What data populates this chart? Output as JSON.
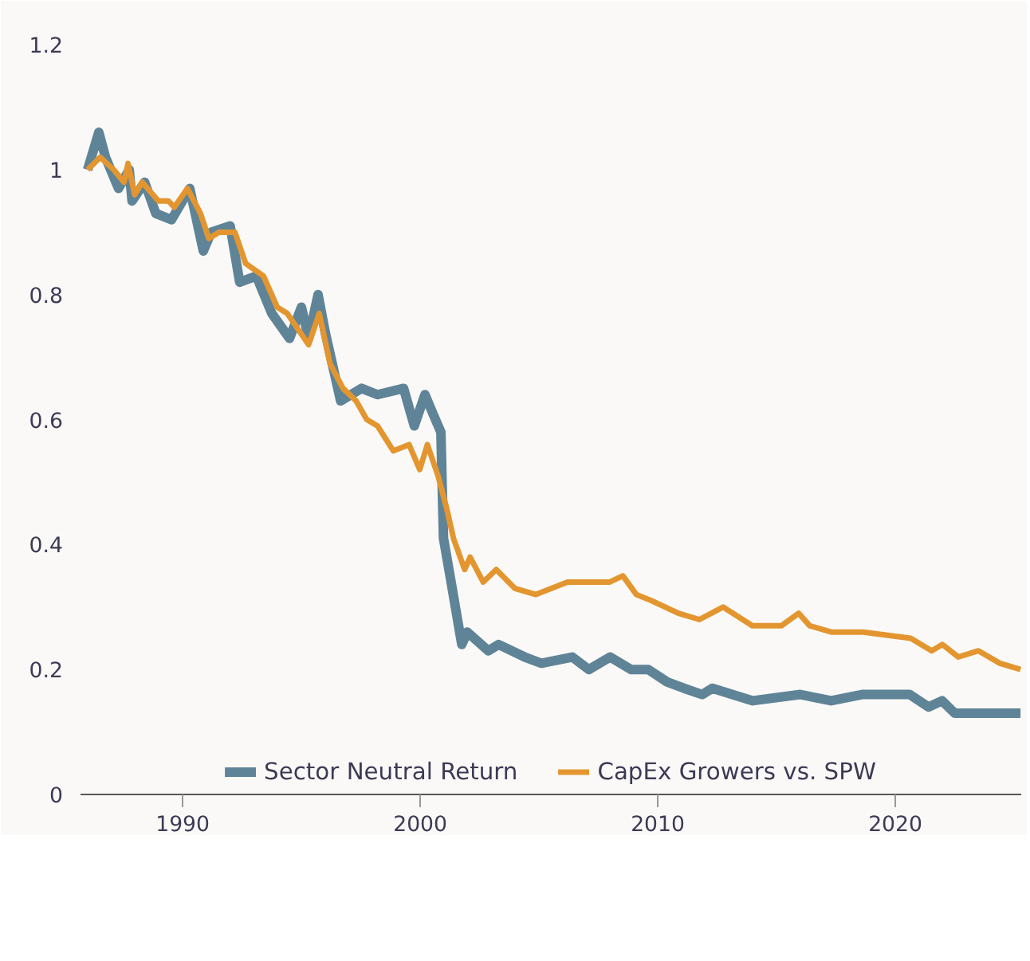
{
  "chart_data": {
    "type": "line",
    "xlim": [
      1985.7,
      2025.3
    ],
    "ylim": [
      0,
      1.25
    ],
    "xticks": [
      1990,
      2000,
      2010,
      2020
    ],
    "yticks": [
      0,
      0.2,
      0.4,
      0.6,
      0.8,
      1,
      1.2
    ],
    "grid": false,
    "legend": "bottom",
    "line_style": "solid",
    "marker": "none",
    "series": [
      {
        "name": "Sector Neutral Return",
        "color": "#5f8497",
        "x": [
          1986.0,
          1986.47,
          1986.75,
          1987.3,
          1987.75,
          1987.87,
          1988.4,
          1988.87,
          1989.53,
          1990.3,
          1990.87,
          1991.2,
          1992.0,
          1992.4,
          1993.1,
          1993.75,
          1994.5,
          1995.0,
          1995.3,
          1995.7,
          1996.0,
          1996.65,
          1997.53,
          1998.2,
          1999.3,
          1999.75,
          2000.2,
          2000.53,
          2000.87,
          2000.98,
          2001.3,
          2001.75,
          2001.98,
          2002.87,
          2003.3,
          2004.4,
          2005.1,
          2006.4,
          2007.1,
          2008.0,
          2008.87,
          2009.6,
          2010.4,
          2011.1,
          2011.87,
          2012.3,
          2014.0,
          2016.0,
          2017.3,
          2018.6,
          2020.6,
          2021.4,
          2021.97,
          2022.5,
          2025.27
        ],
        "values": [
          1.0,
          1.06,
          1.02,
          0.97,
          1.0,
          0.95,
          0.98,
          0.93,
          0.92,
          0.97,
          0.87,
          0.9,
          0.91,
          0.82,
          0.83,
          0.77,
          0.73,
          0.78,
          0.73,
          0.8,
          0.74,
          0.63,
          0.65,
          0.64,
          0.65,
          0.59,
          0.64,
          0.61,
          0.58,
          0.41,
          0.34,
          0.24,
          0.26,
          0.23,
          0.24,
          0.22,
          0.21,
          0.22,
          0.2,
          0.22,
          0.2,
          0.2,
          0.18,
          0.17,
          0.16,
          0.17,
          0.15,
          0.16,
          0.15,
          0.16,
          0.16,
          0.14,
          0.15,
          0.13,
          0.13
        ]
      },
      {
        "name": "CapEx Growers vs. SPW",
        "color": "#e39630",
        "x": [
          1986.0,
          1986.53,
          1987.1,
          1987.53,
          1987.7,
          1987.98,
          1988.3,
          1988.98,
          1989.4,
          1989.65,
          1990.2,
          1990.75,
          1991.1,
          1991.53,
          1992.2,
          1992.65,
          1993.4,
          1993.98,
          1994.4,
          1995.3,
          1995.75,
          1996.2,
          1996.75,
          1997.3,
          1997.75,
          1998.2,
          1998.87,
          1999.53,
          1999.98,
          2000.3,
          2000.75,
          2001.1,
          2001.4,
          2001.87,
          2002.1,
          2002.65,
          2003.2,
          2003.98,
          2004.87,
          2006.2,
          2007.98,
          2008.53,
          2009.1,
          2009.75,
          2010.87,
          2011.75,
          2012.75,
          2013.98,
          2015.2,
          2015.93,
          2016.4,
          2017.3,
          2018.65,
          2020.65,
          2021.53,
          2021.98,
          2022.65,
          2023.5,
          2024.4,
          2025.27
        ],
        "values": [
          1.0,
          1.02,
          1.0,
          0.98,
          1.01,
          0.96,
          0.98,
          0.95,
          0.95,
          0.94,
          0.97,
          0.93,
          0.89,
          0.9,
          0.9,
          0.85,
          0.83,
          0.78,
          0.77,
          0.72,
          0.77,
          0.69,
          0.65,
          0.63,
          0.6,
          0.59,
          0.55,
          0.56,
          0.52,
          0.56,
          0.51,
          0.46,
          0.41,
          0.36,
          0.38,
          0.34,
          0.36,
          0.33,
          0.32,
          0.34,
          0.34,
          0.35,
          0.32,
          0.31,
          0.29,
          0.28,
          0.3,
          0.27,
          0.27,
          0.29,
          0.27,
          0.26,
          0.26,
          0.25,
          0.23,
          0.24,
          0.22,
          0.23,
          0.21,
          0.2
        ]
      }
    ]
  }
}
